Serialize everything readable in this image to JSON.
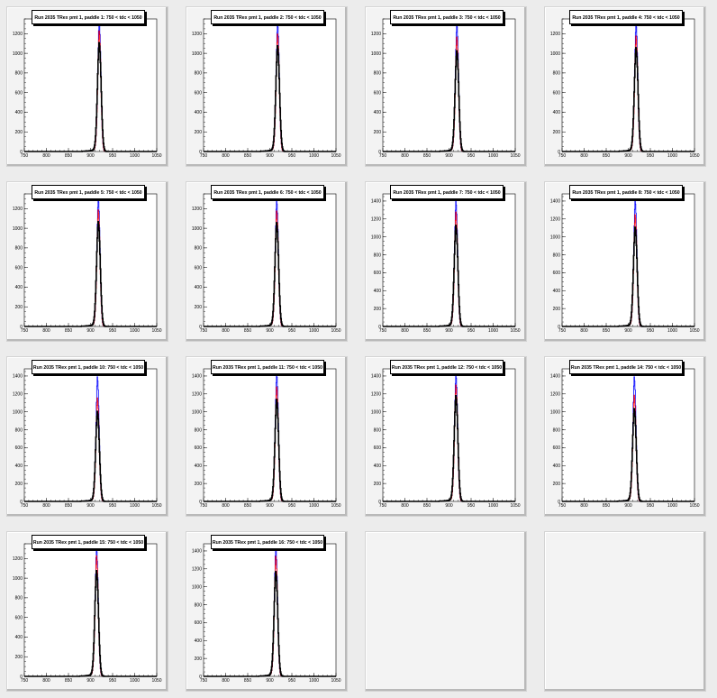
{
  "canvas": {
    "background": "#ececec",
    "pad_background": "#f3f3f3"
  },
  "chart_data": [
    {
      "type": "line",
      "title": "Run 2035 TRex pmt 1, paddle 1: 750 < tdc < 1050",
      "xlim": [
        750,
        1050
      ],
      "ylim": [
        0,
        1350
      ],
      "xticks": [
        "750",
        "800",
        "850",
        "900",
        "950",
        "1000",
        "1050"
      ],
      "yticks": [
        "0",
        "200",
        "400",
        "600",
        "800",
        "1000",
        "1200"
      ],
      "peak_center": 920,
      "series": [
        {
          "color": "#0000ff",
          "peak": 1300
        },
        {
          "color": "#ff0000",
          "peak": 1200
        },
        {
          "color": "#000000",
          "peak": 1080
        }
      ]
    },
    {
      "type": "line",
      "title": "Run 2035 TRex pmt 1, paddle 2: 750 < tdc < 1050",
      "xlim": [
        750,
        1050
      ],
      "ylim": [
        0,
        1350
      ],
      "xticks": [
        "750",
        "800",
        "850",
        "900",
        "950",
        "1000",
        "1050"
      ],
      "yticks": [
        "0",
        "200",
        "400",
        "600",
        "800",
        "1000",
        "1200"
      ],
      "peak_center": 918,
      "series": [
        {
          "color": "#0000ff",
          "peak": 1280
        },
        {
          "color": "#ff0000",
          "peak": 1170
        },
        {
          "color": "#000000",
          "peak": 1050
        }
      ]
    },
    {
      "type": "line",
      "title": "Run 2035 TRex pmt 1, paddle 3: 750 < tdc < 1050",
      "xlim": [
        750,
        1050
      ],
      "ylim": [
        0,
        1350
      ],
      "xticks": [
        "750",
        "800",
        "850",
        "900",
        "950",
        "1000",
        "1050"
      ],
      "yticks": [
        "0",
        "200",
        "400",
        "600",
        "800",
        "1000",
        "1200"
      ],
      "peak_center": 918,
      "series": [
        {
          "color": "#0000ff",
          "peak": 1280
        },
        {
          "color": "#ff0000",
          "peak": 1140
        },
        {
          "color": "#000000",
          "peak": 1000
        }
      ]
    },
    {
      "type": "line",
      "title": "Run 2035 TRex pmt 1, paddle 4: 750 < tdc < 1050",
      "xlim": [
        750,
        1050
      ],
      "ylim": [
        0,
        1350
      ],
      "xticks": [
        "750",
        "800",
        "850",
        "900",
        "950",
        "1000",
        "1050"
      ],
      "yticks": [
        "0",
        "200",
        "400",
        "600",
        "800",
        "1000",
        "1200"
      ],
      "peak_center": 918,
      "series": [
        {
          "color": "#0000ff",
          "peak": 1280
        },
        {
          "color": "#ff0000",
          "peak": 1150
        },
        {
          "color": "#000000",
          "peak": 1030
        }
      ]
    },
    {
      "type": "line",
      "title": "Run 2035 TRex pmt 1, paddle 5: 750 < tdc < 1050",
      "xlim": [
        750,
        1050
      ],
      "ylim": [
        0,
        1350
      ],
      "xticks": [
        "750",
        "800",
        "850",
        "900",
        "950",
        "1000",
        "1050"
      ],
      "yticks": [
        "0",
        "200",
        "400",
        "600",
        "800",
        "1000",
        "1200"
      ],
      "peak_center": 918,
      "series": [
        {
          "color": "#0000ff",
          "peak": 1280
        },
        {
          "color": "#ff0000",
          "peak": 1160
        },
        {
          "color": "#000000",
          "peak": 1040
        }
      ]
    },
    {
      "type": "line",
      "title": "Run 2035 TRex pmt 1, paddle 6: 750 < tdc < 1050",
      "xlim": [
        750,
        1050
      ],
      "ylim": [
        0,
        1350
      ],
      "xticks": [
        "750",
        "800",
        "850",
        "900",
        "950",
        "1000",
        "1050"
      ],
      "yticks": [
        "0",
        "200",
        "400",
        "600",
        "800",
        "1000",
        "1200"
      ],
      "peak_center": 916,
      "series": [
        {
          "color": "#0000ff",
          "peak": 1260
        },
        {
          "color": "#ff0000",
          "peak": 1150
        },
        {
          "color": "#000000",
          "peak": 1030
        }
      ]
    },
    {
      "type": "line",
      "title": "Run 2035 TRex pmt 1, paddle 7: 750 < tdc < 1050",
      "xlim": [
        750,
        1050
      ],
      "ylim": [
        0,
        1480
      ],
      "xticks": [
        "750",
        "800",
        "850",
        "900",
        "950",
        "1000",
        "1050"
      ],
      "yticks": [
        "0",
        "200",
        "400",
        "600",
        "800",
        "1000",
        "1200",
        "1400"
      ],
      "peak_center": 916,
      "series": [
        {
          "color": "#0000ff",
          "peak": 1370
        },
        {
          "color": "#ff0000",
          "peak": 1250
        },
        {
          "color": "#000000",
          "peak": 1100
        }
      ]
    },
    {
      "type": "line",
      "title": "Run 2035 TRex pmt 1, paddle 8: 750 < tdc < 1050",
      "xlim": [
        750,
        1050
      ],
      "ylim": [
        0,
        1480
      ],
      "xticks": [
        "750",
        "800",
        "850",
        "900",
        "950",
        "1000",
        "1050"
      ],
      "yticks": [
        "0",
        "200",
        "400",
        "600",
        "800",
        "1000",
        "1200",
        "1400"
      ],
      "peak_center": 916,
      "series": [
        {
          "color": "#0000ff",
          "peak": 1380
        },
        {
          "color": "#ff0000",
          "peak": 1220
        },
        {
          "color": "#000000",
          "peak": 1080
        }
      ]
    },
    {
      "type": "line",
      "title": "Run 2035 TRex pmt 1, paddle 10: 750 < tdc < 1050",
      "xlim": [
        750,
        1050
      ],
      "ylim": [
        0,
        1480
      ],
      "xticks": [
        "750",
        "800",
        "850",
        "900",
        "950",
        "1000",
        "1050"
      ],
      "yticks": [
        "0",
        "200",
        "400",
        "600",
        "800",
        "1000",
        "1200",
        "1400"
      ],
      "peak_center": 916,
      "series": [
        {
          "color": "#0000ff",
          "peak": 1360
        },
        {
          "color": "#ff0000",
          "peak": 1130
        },
        {
          "color": "#000000",
          "peak": 980
        }
      ]
    },
    {
      "type": "line",
      "title": "Run 2035 TRex pmt 1, paddle 11: 750 < tdc < 1050",
      "xlim": [
        750,
        1050
      ],
      "ylim": [
        0,
        1480
      ],
      "xticks": [
        "750",
        "800",
        "850",
        "900",
        "950",
        "1000",
        "1050"
      ],
      "yticks": [
        "0",
        "200",
        "400",
        "600",
        "800",
        "1000",
        "1200",
        "1400"
      ],
      "peak_center": 916,
      "series": [
        {
          "color": "#0000ff",
          "peak": 1400
        },
        {
          "color": "#ff0000",
          "peak": 1250
        },
        {
          "color": "#000000",
          "peak": 1110
        }
      ]
    },
    {
      "type": "line",
      "title": "Run 2035 TRex pmt 1, paddle 12: 750 < tdc < 1050",
      "xlim": [
        750,
        1050
      ],
      "ylim": [
        0,
        1480
      ],
      "xticks": [
        "750",
        "800",
        "850",
        "900",
        "950",
        "1000",
        "1050"
      ],
      "yticks": [
        "0",
        "200",
        "400",
        "600",
        "800",
        "1000",
        "1200",
        "1400"
      ],
      "peak_center": 916,
      "series": [
        {
          "color": "#0000ff",
          "peak": 1390
        },
        {
          "color": "#ff0000",
          "peak": 1270
        },
        {
          "color": "#000000",
          "peak": 1150
        }
      ]
    },
    {
      "type": "line",
      "title": "Run 2035 TRex pmt 1, paddle 14: 750 < tdc < 1050",
      "xlim": [
        750,
        1050
      ],
      "ylim": [
        0,
        1480
      ],
      "xticks": [
        "750",
        "800",
        "850",
        "900",
        "950",
        "1000",
        "1050"
      ],
      "yticks": [
        "0",
        "200",
        "400",
        "600",
        "800",
        "1000",
        "1200",
        "1400"
      ],
      "peak_center": 914,
      "series": [
        {
          "color": "#0000ff",
          "peak": 1360
        },
        {
          "color": "#ff0000",
          "peak": 1160
        },
        {
          "color": "#000000",
          "peak": 1010
        }
      ]
    },
    {
      "type": "line",
      "title": "Run 2035 TRex pmt 1, paddle 15: 750 < tdc < 1050",
      "xlim": [
        750,
        1050
      ],
      "ylim": [
        0,
        1350
      ],
      "xticks": [
        "750",
        "800",
        "850",
        "900",
        "950",
        "1000",
        "1050"
      ],
      "yticks": [
        "0",
        "200",
        "400",
        "600",
        "800",
        "1000",
        "1200"
      ],
      "peak_center": 914,
      "series": [
        {
          "color": "#0000ff",
          "peak": 1280
        },
        {
          "color": "#ff0000",
          "peak": 1200
        },
        {
          "color": "#000000",
          "peak": 1050
        }
      ]
    },
    {
      "type": "line",
      "title": "Run 2035 TRex pmt 1, paddle 16: 750 < tdc < 1050",
      "xlim": [
        750,
        1050
      ],
      "ylim": [
        0,
        1480
      ],
      "xticks": [
        "750",
        "800",
        "850",
        "900",
        "950",
        "1000",
        "1050"
      ],
      "yticks": [
        "0",
        "200",
        "400",
        "600",
        "800",
        "1000",
        "1200",
        "1400"
      ],
      "peak_center": 914,
      "series": [
        {
          "color": "#0000ff",
          "peak": 1420
        },
        {
          "color": "#ff0000",
          "peak": 1310
        },
        {
          "color": "#000000",
          "peak": 1140
        }
      ]
    }
  ]
}
